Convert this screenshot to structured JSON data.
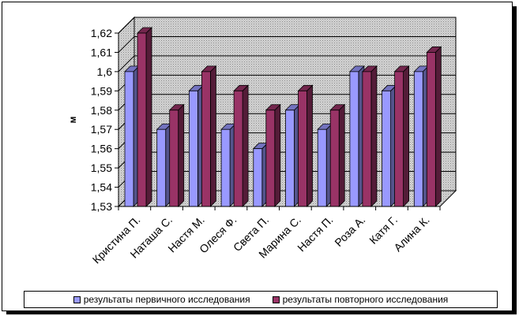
{
  "chart_data": {
    "type": "bar",
    "title": "",
    "xlabel": "",
    "ylabel": "м",
    "ylim": [
      1.53,
      1.62
    ],
    "yticks": [
      "1,53",
      "1,54",
      "1,55",
      "1,56",
      "1,57",
      "1,58",
      "1,59",
      "1,6",
      "1,61",
      "1,62"
    ],
    "grid": true,
    "three_d": true,
    "legend_position": "bottom",
    "categories": [
      "Кристина П.",
      "Наташа С.",
      "Настя М.",
      "Олеся Ф.",
      "Света П.",
      "Марина С.",
      "Настя П.",
      "Роза А.",
      "Катя Г.",
      "Алина К."
    ],
    "series": [
      {
        "name": "результаты первичного исследования",
        "color": "#9999FF",
        "values": [
          1.6,
          1.57,
          1.59,
          1.57,
          1.56,
          1.58,
          1.57,
          1.6,
          1.59,
          1.6
        ]
      },
      {
        "name": "результаты повторного исследования",
        "color": "#993366",
        "values": [
          1.62,
          1.58,
          1.6,
          1.59,
          1.58,
          1.59,
          1.58,
          1.6,
          1.6,
          1.61
        ]
      }
    ]
  }
}
